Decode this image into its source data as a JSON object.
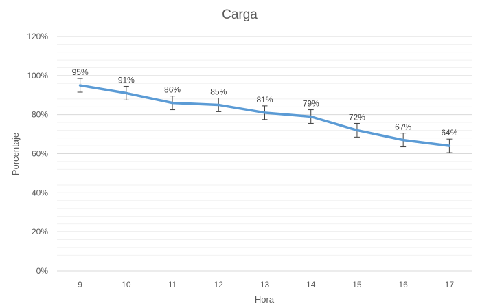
{
  "chart_data": {
    "type": "line",
    "title": "Carga",
    "xlabel": "Hora",
    "ylabel": "Porcentaje",
    "categories": [
      "9",
      "10",
      "11",
      "12",
      "13",
      "14",
      "15",
      "16",
      "17"
    ],
    "series": [
      {
        "values": [
          95,
          91,
          86,
          85,
          81,
          79,
          72,
          67,
          64
        ],
        "data_labels": [
          "95%",
          "91%",
          "86%",
          "85%",
          "81%",
          "79%",
          "72%",
          "67%",
          "64%"
        ],
        "error": [
          3.5,
          3.5,
          3.5,
          3.5,
          3.5,
          3.5,
          3.5,
          3.5,
          3.5
        ],
        "color": "#5B9BD5"
      }
    ],
    "ylim": [
      0,
      120
    ],
    "yticks": [
      0,
      20,
      40,
      60,
      80,
      100,
      120
    ],
    "ytick_labels": [
      "0%",
      "20%",
      "40%",
      "60%",
      "80%",
      "100%",
      "120%"
    ],
    "grid": true,
    "minor_grid": true,
    "legend": "none",
    "colors": {
      "line": "#5B9BD5",
      "gridline": "#D9D9D9",
      "minor_gridline": "#EDEDED",
      "text": "#595959",
      "error_bar": "#404040"
    }
  }
}
